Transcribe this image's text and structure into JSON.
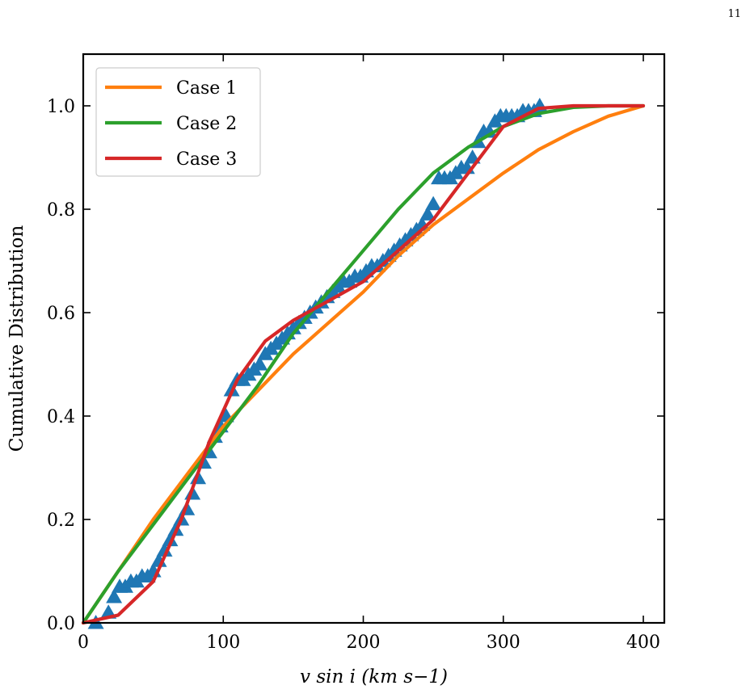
{
  "page_number": "11",
  "chart_data": {
    "type": "line",
    "xlabel": "v sin i (km s−1)",
    "ylabel": "Cumulative Distribution",
    "xlim": [
      0,
      415
    ],
    "ylim": [
      0,
      1.1
    ],
    "xticks": [
      0,
      100,
      200,
      300,
      400
    ],
    "xtick_labels": [
      "0",
      "100",
      "200",
      "300",
      "400"
    ],
    "yticks": [
      0.0,
      0.2,
      0.4,
      0.6,
      0.8,
      1.0
    ],
    "ytick_labels": [
      "0.0",
      "0.2",
      "0.4",
      "0.6",
      "0.8",
      "1.0"
    ],
    "legend_position": "upper-left",
    "grid": false,
    "series": [
      {
        "name": "Case 1",
        "color": "#ff7f0e",
        "x": [
          0,
          25,
          50,
          75,
          100,
          125,
          150,
          175,
          200,
          225,
          250,
          275,
          300,
          325,
          350,
          375,
          400
        ],
        "y": [
          0,
          0.1,
          0.2,
          0.29,
          0.38,
          0.45,
          0.52,
          0.58,
          0.64,
          0.71,
          0.77,
          0.82,
          0.87,
          0.915,
          0.95,
          0.98,
          1.0
        ]
      },
      {
        "name": "Case 2",
        "color": "#2ca02c",
        "x": [
          0,
          25,
          50,
          75,
          100,
          125,
          150,
          175,
          200,
          225,
          250,
          275,
          300,
          325,
          350,
          375,
          400
        ],
        "y": [
          0,
          0.1,
          0.19,
          0.28,
          0.37,
          0.46,
          0.56,
          0.64,
          0.72,
          0.8,
          0.87,
          0.92,
          0.96,
          0.985,
          0.997,
          1.0,
          1.0
        ]
      },
      {
        "name": "Case 3",
        "color": "#d62728",
        "x": [
          0,
          25,
          50,
          70,
          90,
          110,
          130,
          150,
          170,
          200,
          225,
          250,
          275,
          300,
          325,
          350,
          400
        ],
        "y": [
          0,
          0.015,
          0.08,
          0.2,
          0.35,
          0.47,
          0.545,
          0.585,
          0.615,
          0.66,
          0.72,
          0.78,
          0.87,
          0.96,
          0.995,
          1.0,
          1.0
        ]
      }
    ],
    "markers": {
      "color": "#1f77b4",
      "shape": "triangle",
      "x": [
        9,
        18,
        22,
        26,
        30,
        34,
        38,
        42,
        46,
        50,
        54,
        58,
        62,
        66,
        70,
        74,
        78,
        82,
        86,
        90,
        94,
        98,
        102,
        106,
        110,
        114,
        118,
        122,
        126,
        130,
        134,
        138,
        142,
        146,
        150,
        154,
        158,
        162,
        166,
        170,
        174,
        178,
        182,
        186,
        190,
        194,
        198,
        202,
        206,
        210,
        214,
        218,
        222,
        226,
        230,
        234,
        238,
        242,
        246,
        250,
        254,
        258,
        262,
        266,
        270,
        274,
        278,
        282,
        286,
        290,
        294,
        298,
        302,
        306,
        310,
        314,
        318,
        322,
        326
      ],
      "y": [
        0.0,
        0.02,
        0.05,
        0.07,
        0.07,
        0.08,
        0.08,
        0.09,
        0.09,
        0.1,
        0.12,
        0.14,
        0.16,
        0.18,
        0.2,
        0.22,
        0.25,
        0.28,
        0.31,
        0.33,
        0.36,
        0.38,
        0.4,
        0.45,
        0.47,
        0.47,
        0.48,
        0.49,
        0.5,
        0.52,
        0.53,
        0.54,
        0.55,
        0.56,
        0.57,
        0.58,
        0.59,
        0.6,
        0.61,
        0.62,
        0.63,
        0.64,
        0.65,
        0.66,
        0.66,
        0.67,
        0.67,
        0.68,
        0.69,
        0.69,
        0.7,
        0.71,
        0.72,
        0.73,
        0.74,
        0.75,
        0.76,
        0.77,
        0.79,
        0.81,
        0.86,
        0.86,
        0.86,
        0.87,
        0.88,
        0.88,
        0.9,
        0.93,
        0.95,
        0.95,
        0.97,
        0.98,
        0.98,
        0.98,
        0.98,
        0.99,
        0.99,
        0.99,
        1.0
      ]
    }
  }
}
